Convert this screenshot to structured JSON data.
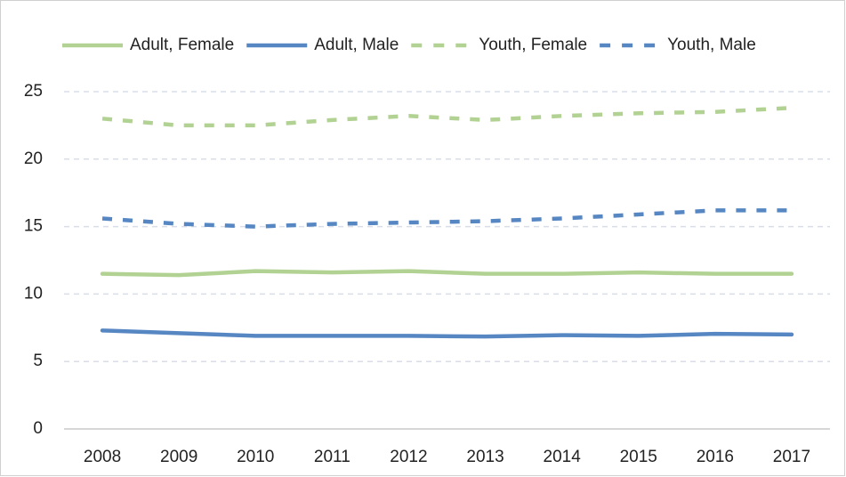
{
  "chart_data": {
    "type": "line",
    "categories": [
      "2008",
      "2009",
      "2010",
      "2011",
      "2012",
      "2013",
      "2014",
      "2015",
      "2016",
      "2017"
    ],
    "series": [
      {
        "name": "Adult, Female",
        "color": "#b2d293",
        "dashed": false,
        "values": [
          11.5,
          11.4,
          11.7,
          11.6,
          11.7,
          11.5,
          11.5,
          11.6,
          11.5,
          11.5
        ]
      },
      {
        "name": "Adult, Male",
        "color": "#5687c3",
        "dashed": false,
        "values": [
          7.3,
          7.1,
          6.9,
          6.9,
          6.9,
          6.85,
          6.95,
          6.9,
          7.05,
          7.0
        ]
      },
      {
        "name": "Youth, Female",
        "color": "#b2d293",
        "dashed": true,
        "values": [
          23.0,
          22.5,
          22.5,
          22.9,
          23.2,
          22.9,
          23.2,
          23.4,
          23.5,
          23.8
        ]
      },
      {
        "name": "Youth, Male",
        "color": "#5687c3",
        "dashed": true,
        "values": [
          15.6,
          15.2,
          15.0,
          15.2,
          15.3,
          15.4,
          15.6,
          15.9,
          16.2,
          16.2
        ]
      }
    ],
    "ylim": [
      0,
      25
    ],
    "yticks": [
      0,
      5,
      10,
      15,
      20,
      25
    ],
    "grid": true,
    "legend": "top"
  }
}
